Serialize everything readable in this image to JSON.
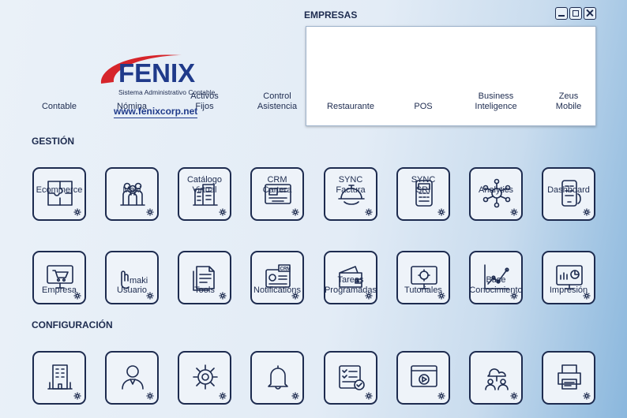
{
  "brand": {
    "name": "FENIX",
    "tagline": "Sistema Administrativo Contable",
    "website": "www.fenixcorp.net"
  },
  "empresas": {
    "label": "EMPRESAS"
  },
  "window_controls": [
    "minimize",
    "maximize",
    "close"
  ],
  "sections": {
    "gestion": "GESTIÓN",
    "configuracion": "CONFIGURACIÓN"
  },
  "modules": {
    "contable": {
      "label": "Contable",
      "icon": "puzzle-icon"
    },
    "nomina": {
      "label": "Nómina",
      "icon": "people-icon"
    },
    "activos": {
      "label": "Activos\nFijos",
      "icon": "building-icon"
    },
    "control": {
      "label": "Control\nAsistencia",
      "icon": "blueprint-icon"
    },
    "restaurante": {
      "label": "Restaurante",
      "icon": "cloche-icon"
    },
    "pos": {
      "label": "POS",
      "icon": "pos-terminal-icon"
    },
    "bi": {
      "label": "Business\nInteligence",
      "icon": "network-icon"
    },
    "zeus": {
      "label": "Zeus\nMobile",
      "icon": "phone-icon"
    },
    "ecommerce": {
      "label": "Ecommerce",
      "icon": "cart-monitor-icon"
    },
    "maki": {
      "label": "Maki",
      "icon": "maki-icon",
      "icon_text": "maki"
    },
    "catalogo": {
      "label": "Catálogo\nVirtual",
      "icon": "catalog-icon"
    },
    "crm": {
      "label": "CRM\nCartera",
      "icon": "crm-icon",
      "icon_text": "CRM"
    },
    "sync_factura": {
      "label": "SYNC\nFactura",
      "icon": "wallet-icon"
    },
    "sync_sri": {
      "label": "SYNC\nSRI",
      "icon": "sync-monitor-icon"
    },
    "analytics": {
      "label": "Analytics",
      "icon": "line-chart-icon"
    },
    "dashboard": {
      "label": "Dashboard",
      "icon": "dashboard-icon"
    },
    "empresa": {
      "label": "Empresa",
      "icon": "office-building-icon"
    },
    "usuario": {
      "label": "Usuario",
      "icon": "user-icon"
    },
    "tools": {
      "label": "Tools",
      "icon": "gear-head-icon"
    },
    "notifications": {
      "label": "Notifications",
      "icon": "bell-icon"
    },
    "tareas": {
      "label": "Tareas\nProgramadas",
      "icon": "checklist-icon"
    },
    "tutoriales": {
      "label": "Tutoriales",
      "icon": "video-icon"
    },
    "base": {
      "label": "Base\nConocimiento",
      "icon": "cloud-people-icon"
    },
    "impresion": {
      "label": "Impresión",
      "icon": "printer-icon"
    }
  },
  "colors": {
    "ink": "#1d2b4f",
    "brand_blue": "#1f3a8a",
    "brand_red": "#d6252b"
  }
}
